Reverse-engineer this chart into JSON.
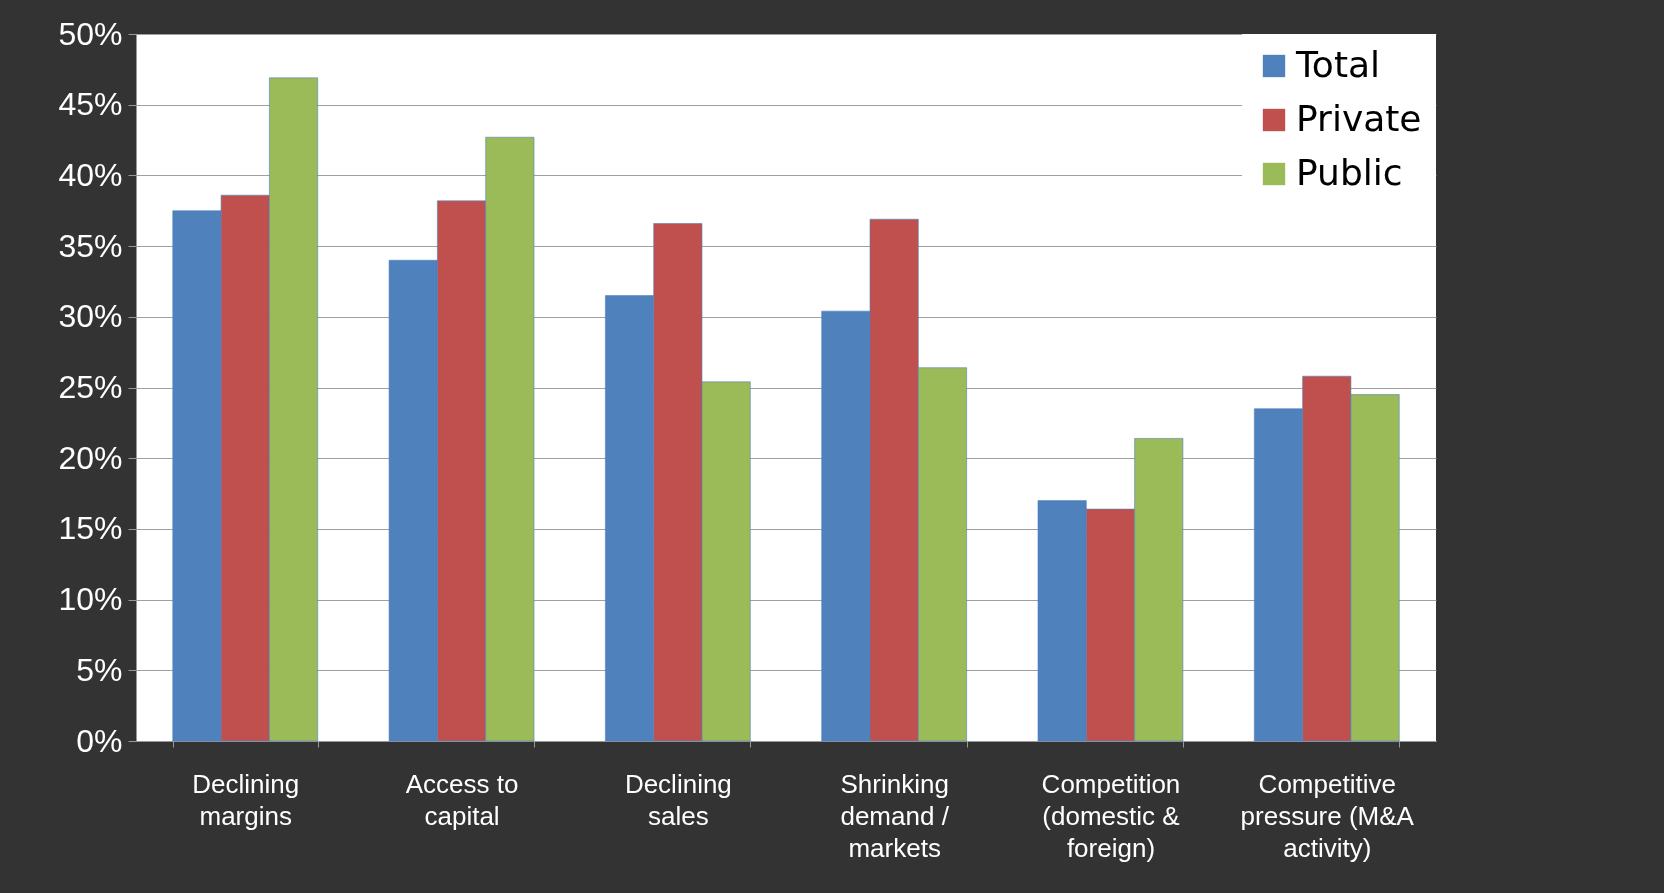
{
  "chart_data": {
    "type": "bar",
    "categories": [
      "Declining margins",
      "Access to capital",
      "Declining sales",
      "Shrinking demand / markets",
      "Competition (domestic & foreign)",
      "Competitive pressure (M&A activity)"
    ],
    "series": [
      {
        "name": "Total",
        "color": "#4f81bd",
        "values": [
          37.5,
          34.0,
          31.5,
          30.4,
          17.0,
          23.5
        ]
      },
      {
        "name": "Private",
        "color": "#c0504d",
        "values": [
          38.6,
          38.2,
          36.6,
          36.9,
          16.4,
          25.8
        ]
      },
      {
        "name": "Public",
        "color": "#9bbb59",
        "values": [
          46.9,
          42.7,
          25.4,
          26.4,
          21.4,
          24.5
        ]
      }
    ],
    "ylim": [
      0,
      50
    ],
    "yticks": [
      {
        "value": 0,
        "label": "0%"
      },
      {
        "value": 5,
        "label": "5%"
      },
      {
        "value": 10,
        "label": "10%"
      },
      {
        "value": 15,
        "label": "15%"
      },
      {
        "value": 20,
        "label": "20%"
      },
      {
        "value": 25,
        "label": "25%"
      },
      {
        "value": 30,
        "label": "30%"
      },
      {
        "value": 35,
        "label": "35%"
      },
      {
        "value": 40,
        "label": "40%"
      },
      {
        "value": 45,
        "label": "45%"
      },
      {
        "value": 50,
        "label": "50%"
      }
    ],
    "grid": "y",
    "legend": "top right"
  }
}
